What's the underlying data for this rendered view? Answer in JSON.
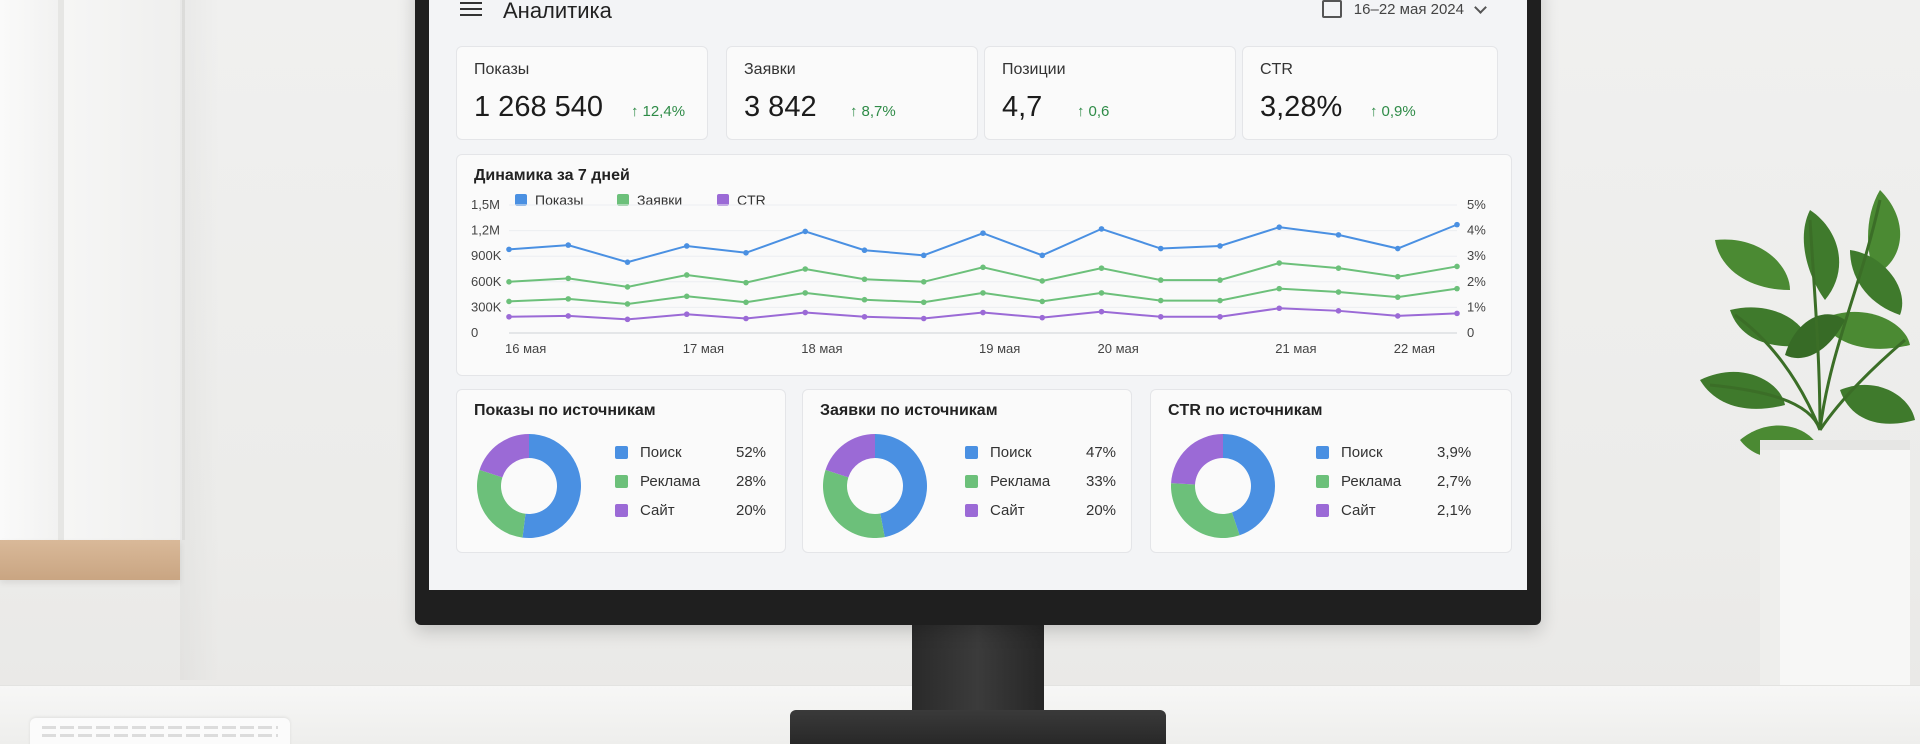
{
  "app": {
    "title": "Аналитика",
    "date_range": "16–22 мая 2024"
  },
  "kpis": [
    {
      "label": "Показы",
      "value": "1 268 540",
      "delta": "12,4%"
    },
    {
      "label": "Заявки",
      "value": "3 842",
      "delta": "8,7%"
    },
    {
      "label": "Позиции",
      "value": "4,7",
      "delta": "0,6"
    },
    {
      "label": "CTR",
      "value": "3,28%",
      "delta": "0,9%"
    }
  ],
  "colors": {
    "blue": "#4a90e2",
    "green": "#6cc07a",
    "purple": "#9b6ad6",
    "delta_up": "#2e8b47"
  },
  "trend": {
    "title": "Динамика за 7 дней",
    "legend": [
      "Показы",
      "Заявки",
      "CTR"
    ],
    "y_left_ticks": [
      "1,5M",
      "1,2M",
      "900K",
      "600K",
      "300K",
      "0"
    ],
    "y_right_ticks": [
      "5%",
      "4%",
      "3%",
      "2%",
      "1%",
      "0"
    ],
    "x_ticks": [
      "16 мая",
      "17 мая",
      "18 мая",
      "19 мая",
      "20 мая",
      "21 мая",
      "22 мая"
    ]
  },
  "chart_data": [
    {
      "type": "line",
      "title": "Динамика за 7 дней",
      "x": [
        "16 мая",
        "",
        "",
        "17 мая",
        "",
        "18 мая",
        "",
        "",
        "19 мая",
        "",
        "20 мая",
        "",
        "",
        "21 мая",
        "",
        "22 мая",
        ""
      ],
      "ylim": [
        0,
        1500000
      ],
      "y2lim": [
        0,
        5
      ],
      "series": [
        {
          "name": "Показы",
          "values": [
            980000,
            1030000,
            830000,
            1020000,
            940000,
            1190000,
            970000,
            910000,
            1170000,
            910000,
            1220000,
            990000,
            1020000,
            1240000,
            1150000,
            990000,
            1270000
          ]
        },
        {
          "name": "Заявки",
          "values": [
            600000,
            640000,
            540000,
            680000,
            590000,
            750000,
            630000,
            600000,
            770000,
            610000,
            760000,
            620000,
            620000,
            820000,
            760000,
            660000,
            780000
          ]
        },
        {
          "name": "",
          "values": [
            370000,
            400000,
            340000,
            430000,
            360000,
            470000,
            390000,
            360000,
            470000,
            370000,
            470000,
            380000,
            380000,
            520000,
            480000,
            420000,
            520000
          ]
        },
        {
          "name": "CTR",
          "values": [
            190000,
            200000,
            160000,
            220000,
            170000,
            240000,
            190000,
            170000,
            240000,
            180000,
            250000,
            190000,
            190000,
            290000,
            260000,
            200000,
            230000
          ]
        }
      ]
    },
    {
      "type": "pie",
      "title": "Показы по источникам",
      "categories": [
        "Поиск",
        "Реклама",
        "Сайт"
      ],
      "values": [
        52,
        28,
        20
      ],
      "labels": [
        "52%",
        "28%",
        "20%"
      ]
    },
    {
      "type": "pie",
      "title": "Заявки по источникам",
      "categories": [
        "Поиск",
        "Реклама",
        "Сайт"
      ],
      "values": [
        47,
        33,
        20
      ],
      "labels": [
        "47%",
        "33%",
        "20%"
      ]
    },
    {
      "type": "pie",
      "title": "CTR по источникам",
      "categories": [
        "Поиск",
        "Реклама",
        "Сайт"
      ],
      "values": [
        3.9,
        2.7,
        2.1
      ],
      "labels": [
        "3,9%",
        "2,7%",
        "2,1%"
      ]
    }
  ]
}
